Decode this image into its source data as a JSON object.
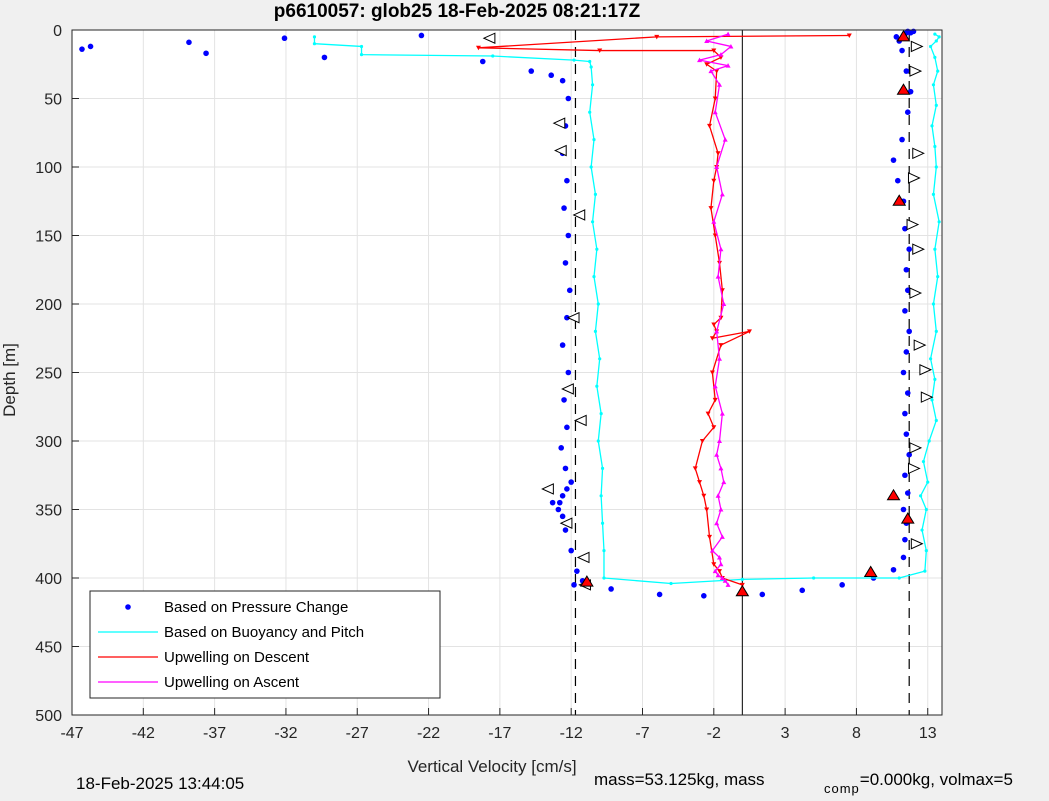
{
  "chart_data": {
    "type": "scatter",
    "title": "p6610057: glob25 18-Feb-2025 08:21:17Z",
    "xlabel": "Vertical Velocity [cm/s]",
    "ylabel": "Depth [m]",
    "xlim": [
      -47,
      14
    ],
    "ylim": [
      0,
      500
    ],
    "y_reversed": true,
    "grid": true,
    "x_ticks": [
      -47,
      -42,
      -37,
      -32,
      -27,
      -22,
      -17,
      -12,
      -7,
      -2,
      3,
      8,
      13
    ],
    "y_ticks": [
      0,
      50,
      100,
      150,
      200,
      250,
      300,
      350,
      400,
      450,
      500
    ],
    "legend_position": "bottom-left",
    "reference_lines": {
      "solid": [
        0
      ],
      "dashed": [
        -11.7,
        11.7
      ]
    },
    "series": [
      {
        "name": "Based on Pressure Change",
        "color": "#0000ff",
        "style": "dots",
        "x": [
          -46.3,
          -45.7,
          -38.8,
          -37.6,
          -32.1,
          -29.3,
          -22.5,
          -18.2,
          -14.8,
          -13.4,
          -12.6,
          -12.2,
          -12.4,
          -12.6,
          -12.3,
          -12.5,
          -12.2,
          -12.4,
          -12.1,
          -12.3,
          -12.6,
          -12.2,
          -12.5,
          -12.3,
          -12.7,
          -12.4,
          -12.0,
          -12.3,
          -12.6,
          -12.8,
          -12.9,
          -13.3,
          -12.6,
          -12.4,
          -12.0,
          -11.6,
          -11.2,
          -11.8,
          -9.2,
          -5.8,
          -2.7,
          1.4,
          4.2,
          7.0,
          9.2,
          10.6,
          11.3,
          11.4,
          11.5,
          11.3,
          11.6,
          11.4,
          11.7,
          11.5,
          11.4,
          11.6,
          11.3,
          11.5,
          11.7,
          11.4,
          11.6,
          11.5,
          11.7,
          11.4,
          11.3,
          10.9,
          10.6,
          11.2,
          11.6,
          11.8,
          11.5,
          11.2,
          11.0,
          10.8,
          11.4,
          11.8,
          11.5,
          11.6,
          12.0
        ],
        "y": [
          14,
          12,
          9,
          17,
          6,
          20,
          4,
          23,
          30,
          33,
          37,
          50,
          70,
          90,
          110,
          130,
          150,
          170,
          190,
          210,
          230,
          250,
          270,
          290,
          305,
          320,
          330,
          335,
          340,
          345,
          350,
          345,
          355,
          365,
          380,
          395,
          402,
          405,
          408,
          412,
          413,
          412,
          409,
          405,
          400,
          394,
          385,
          372,
          360,
          350,
          338,
          325,
          310,
          295,
          280,
          265,
          250,
          235,
          220,
          205,
          190,
          175,
          160,
          145,
          125,
          110,
          95,
          80,
          60,
          45,
          30,
          15,
          8,
          5,
          3,
          2,
          2,
          1,
          1
        ]
      },
      {
        "name": "Based on Buoyancy and Pitch",
        "color": "#00ffff",
        "style": "line",
        "x": [
          -30.0,
          -30.0,
          -26.7,
          -26.7,
          -17.5,
          -11.8,
          -10.7,
          -10.6,
          -10.5,
          -10.7,
          -10.4,
          -10.6,
          -10.3,
          -10.5,
          -10.2,
          -10.4,
          -10.1,
          -10.3,
          -10.0,
          -10.2,
          -9.9,
          -10.1,
          -9.8,
          -9.9,
          -9.8,
          -9.7,
          -9.7,
          -5.0,
          0.0,
          5.0,
          11.0,
          12.8,
          12.9,
          12.6,
          12.9,
          12.5,
          13.0,
          12.7,
          13.1,
          13.6,
          13.3,
          13.5,
          13.2,
          13.6,
          13.4,
          13.7,
          13.5,
          13.8,
          13.4,
          13.6,
          13.5,
          13.3,
          13.6,
          13.4,
          13.7,
          13.5,
          13.2,
          13.6,
          13.8,
          13.5
        ],
        "y": [
          5,
          10,
          12,
          18,
          19,
          22,
          23,
          27,
          40,
          60,
          80,
          100,
          120,
          140,
          160,
          180,
          200,
          220,
          240,
          260,
          280,
          300,
          320,
          340,
          360,
          380,
          400,
          404,
          401,
          400,
          400,
          395,
          380,
          365,
          350,
          340,
          330,
          315,
          300,
          285,
          270,
          255,
          240,
          220,
          200,
          180,
          160,
          140,
          120,
          100,
          85,
          70,
          55,
          40,
          30,
          20,
          12,
          8,
          5,
          3
        ]
      },
      {
        "name": "Upwelling on Descent",
        "color": "#ff0000",
        "style": "line-markers-down",
        "x": [
          7.5,
          -6.0,
          -18.5,
          -10.0,
          -2.0,
          -1.5,
          -2.5,
          -1.8,
          -1.9,
          -2.3,
          -1.7,
          -1.8,
          -2.0,
          -2.2,
          -1.9,
          -1.6,
          -1.4,
          -1.5,
          -2.0,
          -1.8,
          -2.1,
          0.5,
          -1.5,
          -2.1,
          -1.9,
          -2.4,
          -2.0,
          -2.8,
          -3.3,
          -3.0,
          -2.7,
          -2.5,
          -2.3,
          -2.0,
          -1.6,
          -1.4,
          0.0,
          0.0
        ],
        "y": [
          4,
          5,
          13,
          15,
          15,
          20,
          25,
          30,
          50,
          70,
          90,
          100,
          110,
          130,
          150,
          170,
          190,
          210,
          215,
          220,
          225,
          220,
          230,
          250,
          270,
          280,
          290,
          300,
          320,
          330,
          340,
          350,
          370,
          390,
          395,
          400,
          405,
          410
        ]
      },
      {
        "name": "Upwelling on Ascent",
        "color": "#ff00ff",
        "style": "line-markers-up",
        "x": [
          -1.0,
          -2.5,
          -0.8,
          -1.5,
          -3.0,
          -1.0,
          -2.2,
          -1.6,
          -1.9,
          -1.2,
          -1.8,
          -1.4,
          -2.0,
          -1.5,
          -1.7,
          -1.3,
          -1.8,
          -1.6,
          -1.9,
          -1.4,
          -1.6,
          -1.8,
          -1.5,
          -1.3,
          -1.7,
          -1.5,
          -1.8,
          -1.4,
          -2.1,
          -1.6,
          -1.5,
          -1.9,
          -1.7,
          -1.4,
          -1.2,
          -1.0
        ],
        "y": [
          3,
          8,
          12,
          18,
          22,
          26,
          30,
          40,
          60,
          80,
          100,
          120,
          140,
          160,
          180,
          200,
          220,
          240,
          260,
          280,
          300,
          310,
          320,
          330,
          340,
          350,
          360,
          370,
          380,
          385,
          390,
          395,
          398,
          400,
          402,
          405
        ]
      }
    ],
    "direction_markers": {
      "left": [
        [
          -17.7,
          6
        ],
        [
          -12.8,
          68
        ],
        [
          -12.7,
          88
        ],
        [
          -11.8,
          210
        ],
        [
          -12.2,
          262
        ],
        [
          -11.3,
          285
        ],
        [
          -13.6,
          335
        ],
        [
          -12.3,
          360
        ],
        [
          -11.1,
          385
        ],
        [
          -11.0,
          405
        ],
        [
          -11.4,
          135
        ]
      ],
      "right": [
        [
          12.2,
          12
        ],
        [
          12.1,
          30
        ],
        [
          12.3,
          90
        ],
        [
          12.0,
          108
        ],
        [
          12.3,
          160
        ],
        [
          12.1,
          192
        ],
        [
          12.4,
          230
        ],
        [
          12.8,
          248
        ],
        [
          12.9,
          268
        ],
        [
          12.1,
          305
        ],
        [
          12.0,
          320
        ],
        [
          12.2,
          375
        ],
        [
          11.9,
          142
        ]
      ],
      "red": [
        [
          11.3,
          5
        ],
        [
          11.3,
          44
        ],
        [
          11.0,
          125
        ],
        [
          10.6,
          340
        ],
        [
          11.6,
          357
        ],
        [
          9.0,
          396
        ],
        [
          -10.9,
          403
        ],
        [
          0.0,
          410
        ]
      ]
    },
    "legend": [
      {
        "label": "Based on Pressure Change",
        "style": "dot",
        "color": "#0000ff"
      },
      {
        "label": "Based on Buoyancy and Pitch",
        "style": "line",
        "color": "#00ffff"
      },
      {
        "label": "Upwelling on Descent",
        "style": "line",
        "color": "#ff0000"
      },
      {
        "label": "Upwelling on Ascent",
        "style": "line",
        "color": "#ff00ff"
      }
    ]
  },
  "footer": {
    "timestamp": "18-Feb-2025 13:44:05",
    "mass_text": "mass=53.125kg, mass",
    "comp_sub": "comp",
    "comp_text": "=0.000kg, volmax=5"
  }
}
